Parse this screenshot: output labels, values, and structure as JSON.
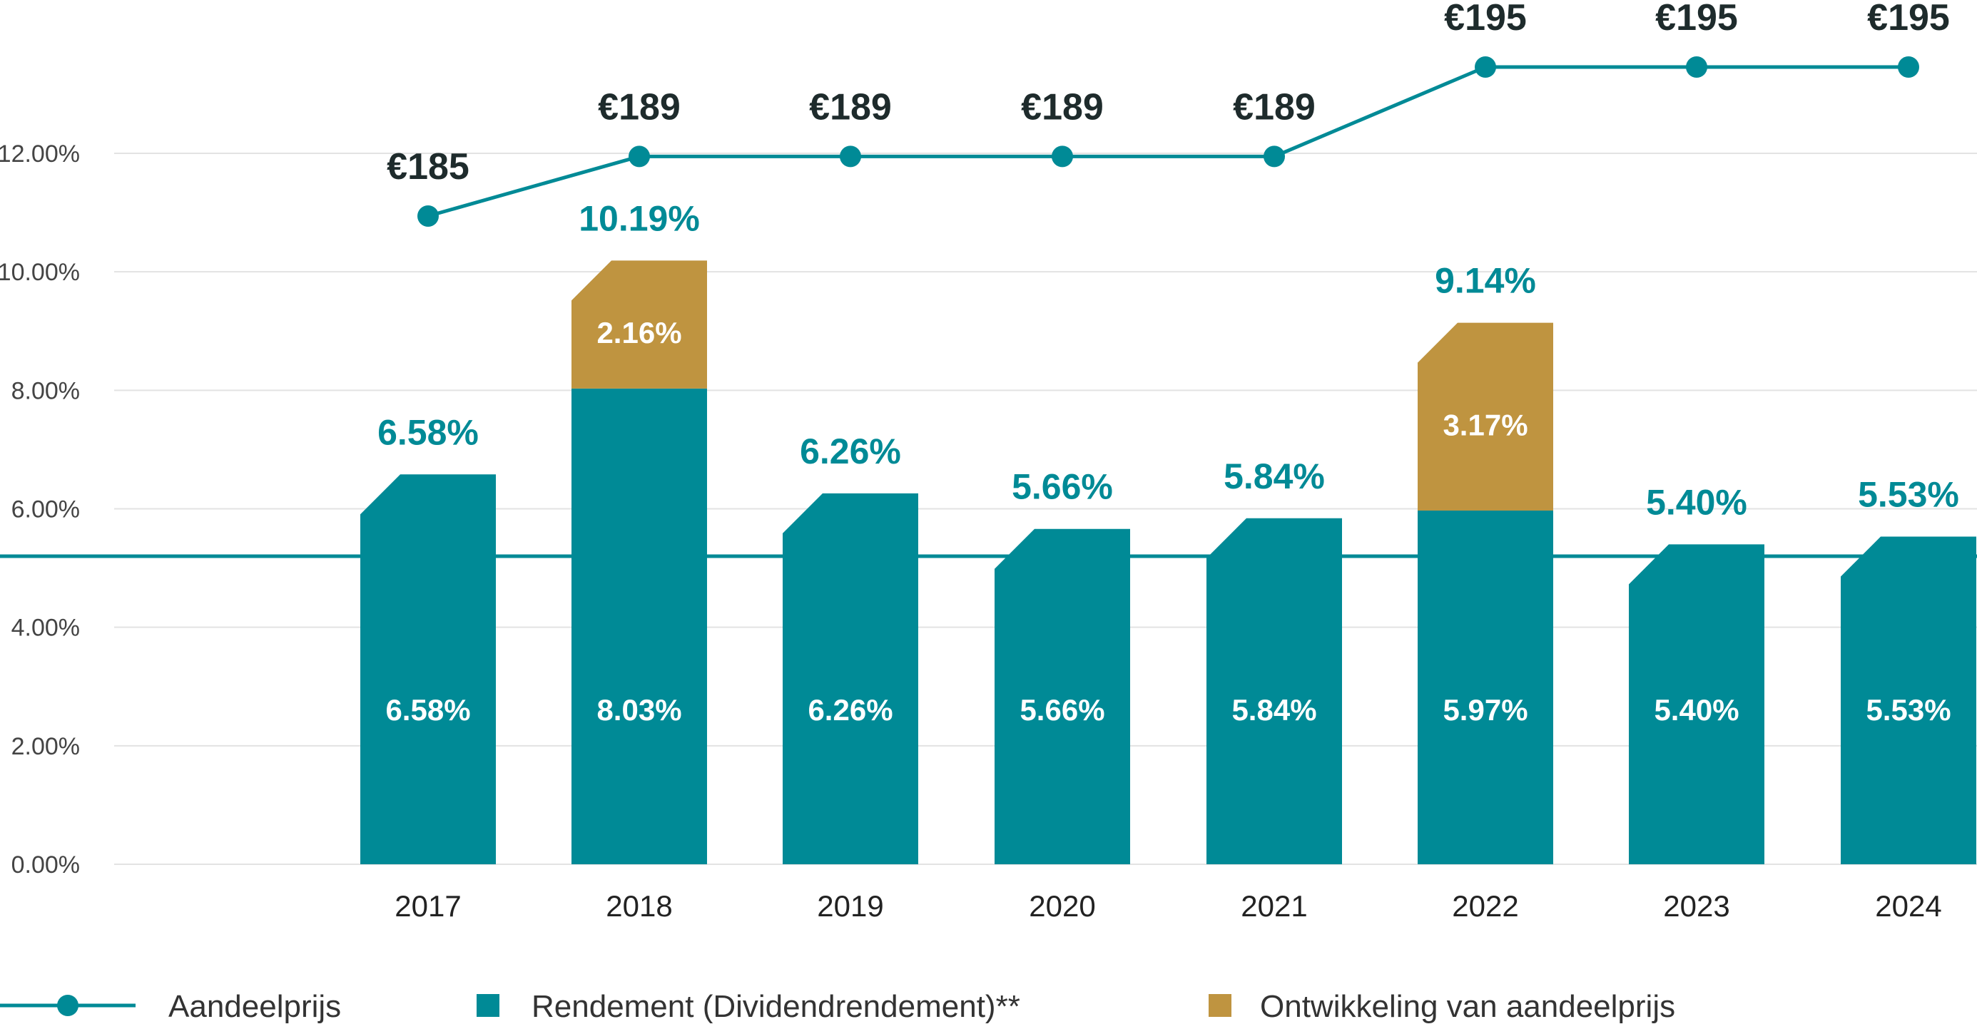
{
  "colors": {
    "teal": "#008a96",
    "gold": "#bf9440",
    "grid": "#e3e3e3",
    "price_text": "#1e2b2c"
  },
  "chart_data": {
    "type": "bar",
    "stacked": true,
    "categories": [
      "2017",
      "2018",
      "2019",
      "2020",
      "2021",
      "2022",
      "2023",
      "2024"
    ],
    "ylim": [
      0,
      12
    ],
    "yticks": [
      "0.00%",
      "2.00%",
      "4.00%",
      "6.00%",
      "8.00%",
      "10.00%",
      "12.00%"
    ],
    "grid": true,
    "reference_line": 5.2,
    "series": [
      {
        "name": "Rendement (Dividendrendement)**",
        "color": "#008a96",
        "values": [
          6.58,
          8.03,
          6.26,
          5.66,
          5.84,
          5.97,
          5.4,
          5.53
        ],
        "labels": [
          "6.58%",
          "8.03%",
          "6.26%",
          "5.66%",
          "5.84%",
          "5.97%",
          "5.40%",
          "5.53%"
        ]
      },
      {
        "name": "Ontwikkeling van aandeelprijs",
        "color": "#bf9440",
        "values": [
          0,
          2.16,
          0,
          0,
          0,
          3.17,
          0,
          0
        ],
        "labels": [
          "",
          "2.16%",
          "",
          "",
          "",
          "3.17%",
          "",
          ""
        ]
      }
    ],
    "totals": [
      6.58,
      10.19,
      6.26,
      5.66,
      5.84,
      9.14,
      5.4,
      5.53
    ],
    "total_labels": [
      "6.58%",
      "10.19%",
      "6.26%",
      "5.66%",
      "5.84%",
      "9.14%",
      "5.40%",
      "5.53%"
    ],
    "line_series": {
      "name": "Aandeelprijs",
      "color": "#008a96",
      "values": [
        185,
        189,
        189,
        189,
        189,
        195,
        195,
        195
      ],
      "labels": [
        "€185",
        "€189",
        "€189",
        "€189",
        "€189",
        "€195",
        "€195",
        "€195"
      ]
    },
    "legend": {
      "position": "bottom",
      "items": [
        {
          "label": "Aandeelprijs",
          "marker": "line-dot",
          "color": "#008a96"
        },
        {
          "label": "Rendement (Dividendrendement)**",
          "marker": "square",
          "color": "#008a96"
        },
        {
          "label": "Ontwikkeling van aandeelprijs",
          "marker": "square",
          "color": "#bf9440"
        }
      ]
    }
  }
}
